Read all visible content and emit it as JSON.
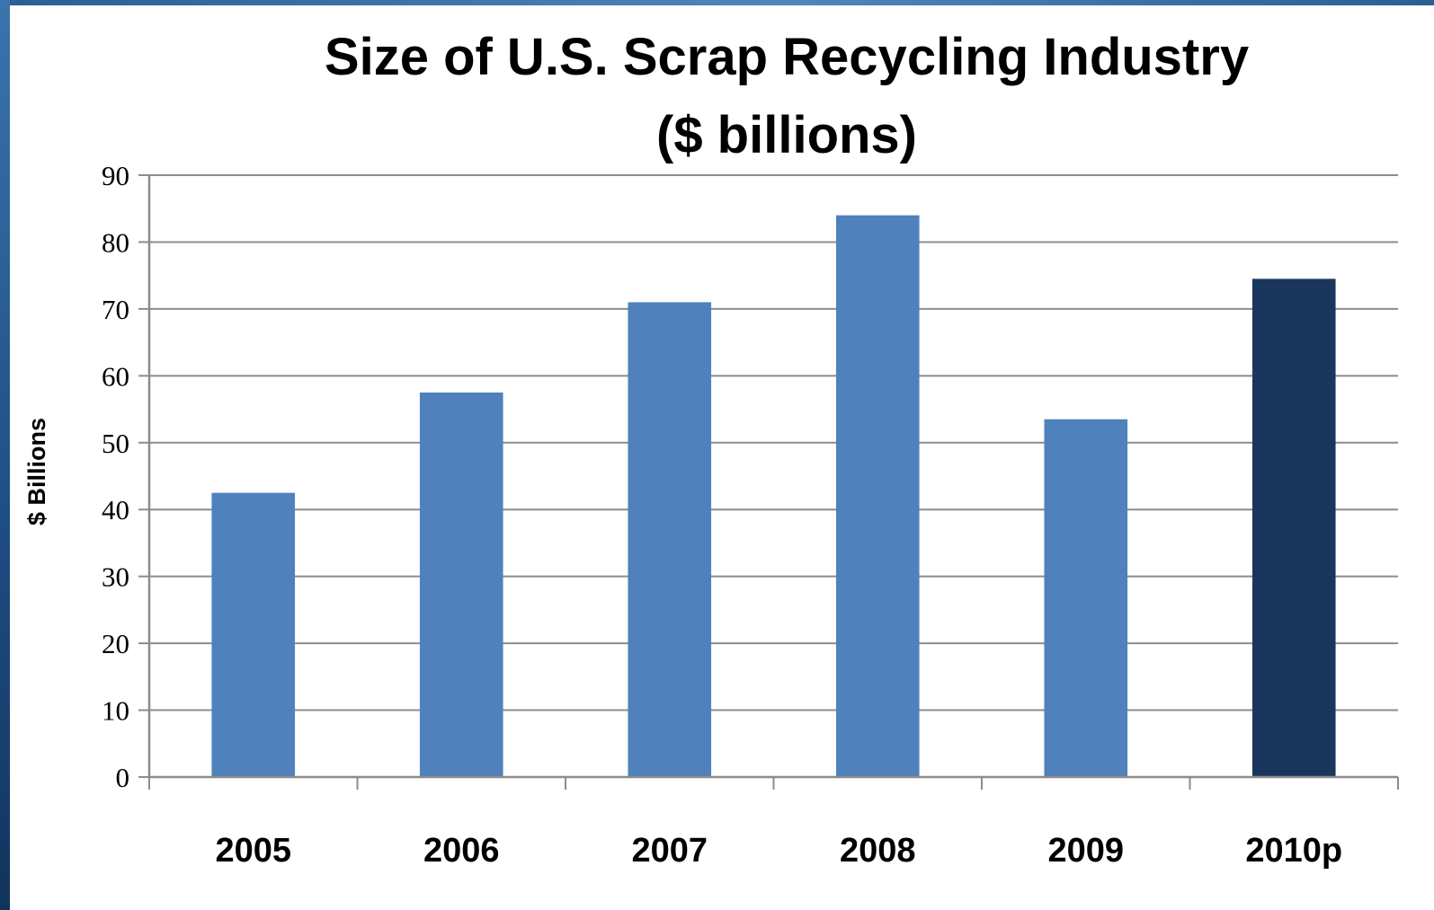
{
  "chart_data": {
    "type": "bar",
    "title_line1": "Size of U.S. Scrap Recycling Industry",
    "title_line2": "($ billions)",
    "ylabel": "$ Billions",
    "xlabel": "",
    "categories": [
      "2005",
      "2006",
      "2007",
      "2008",
      "2009",
      "2010p"
    ],
    "values": [
      42.5,
      57.5,
      71,
      84,
      53.5,
      74.5
    ],
    "ylim": [
      0,
      90
    ],
    "yticks": [
      0,
      10,
      20,
      30,
      40,
      50,
      60,
      70,
      80,
      90
    ],
    "grid": true,
    "legend": "none",
    "colors": {
      "bar": "#4f81bd",
      "highlight": "#1b365d",
      "gridline": "#8c8c8c"
    },
    "highlight_categories": [
      "2010p"
    ]
  }
}
